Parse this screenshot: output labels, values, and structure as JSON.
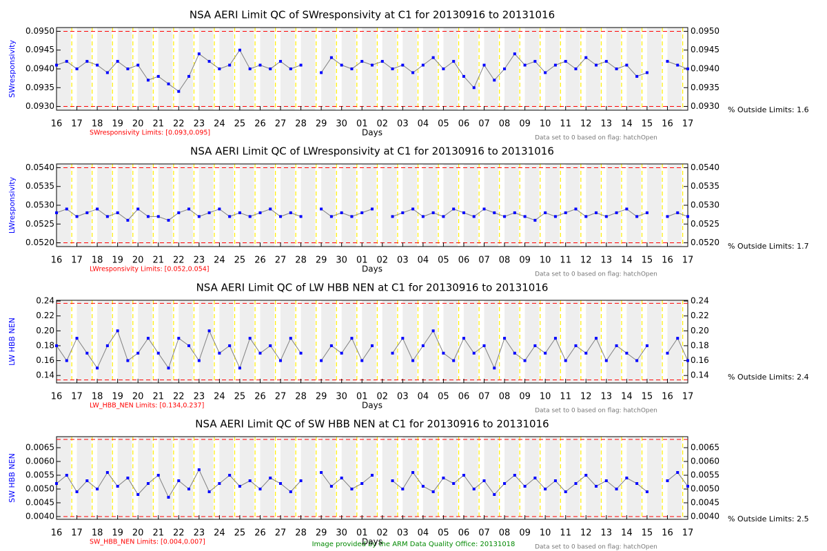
{
  "chart_data": [
    {
      "type": "line",
      "title": "NSA AERI Limit QC of SWresponsivity at C1 for 20130916 to 20131016",
      "ylabel": "SWresponsivity",
      "xlabel": "Days",
      "limits_label": "SWresponsivity Limits: [0.093,0.095]",
      "note": "Data set to 0 based on flag: hatchOpen",
      "outside_label": "% Outside Limits: 1.6",
      "color": "#0000ff",
      "line_color": "#808080",
      "limit_color": "#ff0000",
      "limit_lines": [
        0.095,
        0.093
      ],
      "ylim": [
        0.0929,
        0.0951
      ],
      "yticks": [
        {
          "value": 0.093,
          "label": "0.0930"
        },
        0.0935,
        {
          "value": 0.094,
          "label": "0.0940"
        },
        0.0945,
        {
          "value": 0.095,
          "label": "0.0950"
        }
      ],
      "xlim": [
        0,
        31
      ],
      "xticks": [
        {
          "value": 0,
          "label": "16"
        },
        {
          "value": 1,
          "label": "17"
        },
        {
          "value": 2,
          "label": "18"
        },
        {
          "value": 3,
          "label": "19"
        },
        {
          "value": 4,
          "label": "20"
        },
        {
          "value": 5,
          "label": "21"
        },
        {
          "value": 6,
          "label": "22"
        },
        {
          "value": 7,
          "label": "23"
        },
        {
          "value": 8,
          "label": "24"
        },
        {
          "value": 9,
          "label": "25"
        },
        {
          "value": 10,
          "label": "26"
        },
        {
          "value": 11,
          "label": "27"
        },
        {
          "value": 12,
          "label": "28"
        },
        {
          "value": 13,
          "label": "29"
        },
        {
          "value": 14,
          "label": "30"
        },
        {
          "value": 15,
          "label": "01"
        },
        {
          "value": 16,
          "label": "02"
        },
        {
          "value": 17,
          "label": "03"
        },
        {
          "value": 18,
          "label": "04"
        },
        {
          "value": 19,
          "label": "05"
        },
        {
          "value": 20,
          "label": "06"
        },
        {
          "value": 21,
          "label": "07"
        },
        {
          "value": 22,
          "label": "08"
        },
        {
          "value": 23,
          "label": "09"
        },
        {
          "value": 24,
          "label": "10"
        },
        {
          "value": 25,
          "label": "11"
        },
        {
          "value": 26,
          "label": "12"
        },
        {
          "value": 27,
          "label": "13"
        },
        {
          "value": 28,
          "label": "14"
        },
        {
          "value": 29,
          "label": "15"
        },
        {
          "value": 30,
          "label": "16"
        },
        {
          "value": 31,
          "label": "17"
        }
      ],
      "x": [
        0,
        0.5,
        1,
        1.5,
        2,
        2.5,
        3,
        3.5,
        4,
        4.5,
        5,
        5.5,
        6,
        6.5,
        7,
        7.5,
        8,
        8.5,
        9,
        9.5,
        10,
        10.5,
        11,
        11.5,
        12,
        12.5,
        13,
        13.5,
        14,
        14.5,
        15,
        15.5,
        16,
        16.5,
        17,
        17.5,
        18,
        18.5,
        19,
        19.5,
        20,
        20.5,
        21,
        21.5,
        22,
        22.5,
        23,
        23.5,
        24,
        24.5,
        25,
        25.5,
        26,
        26.5,
        27,
        27.5,
        28,
        28.5,
        29,
        29.5,
        30,
        30.5,
        31
      ],
      "values": [
        0.0941,
        0.0942,
        0.094,
        0.0942,
        0.0941,
        0.0939,
        0.0942,
        0.094,
        0.0941,
        0.0937,
        0.0938,
        0.0936,
        0.0934,
        0.0938,
        0.0944,
        0.0942,
        0.094,
        0.0941,
        0.0945,
        0.094,
        0.0941,
        0.094,
        0.0942,
        0.094,
        0.0941,
        null,
        0.0939,
        0.0943,
        0.0941,
        0.094,
        0.0942,
        0.0941,
        0.0942,
        0.094,
        0.0941,
        0.0939,
        0.0941,
        0.0943,
        0.094,
        0.0942,
        0.0938,
        0.0935,
        0.0941,
        0.0937,
        0.094,
        0.0944,
        0.0941,
        0.0942,
        0.0939,
        0.0941,
        0.0942,
        0.094,
        0.0943,
        0.0941,
        0.0942,
        0.094,
        0.0941,
        0.0938,
        0.0939,
        null,
        0.0942,
        0.0941,
        0.094
      ]
    },
    {
      "type": "line",
      "title": "NSA AERI Limit QC of LWresponsivity at C1 for 20130916 to 20131016",
      "ylabel": "LWresponsivity",
      "xlabel": "Days",
      "limits_label": "LWresponsivity Limits: [0.052,0.054]",
      "note": "Data set to 0 based on flag: hatchOpen",
      "outside_label": "% Outside Limits: 1.7",
      "color": "#0000ff",
      "line_color": "#808080",
      "limit_color": "#ff0000",
      "limit_lines": [
        0.054,
        0.052
      ],
      "ylim": [
        0.0519,
        0.0541
      ],
      "yticks": [
        {
          "value": 0.052,
          "label": "0.0520"
        },
        0.0525,
        {
          "value": 0.053,
          "label": "0.0530"
        },
        0.0535,
        {
          "value": 0.054,
          "label": "0.0540"
        }
      ],
      "xlim": [
        0,
        31
      ],
      "xticks": [
        {
          "value": 0,
          "label": "16"
        },
        {
          "value": 1,
          "label": "17"
        },
        {
          "value": 2,
          "label": "18"
        },
        {
          "value": 3,
          "label": "19"
        },
        {
          "value": 4,
          "label": "20"
        },
        {
          "value": 5,
          "label": "21"
        },
        {
          "value": 6,
          "label": "22"
        },
        {
          "value": 7,
          "label": "23"
        },
        {
          "value": 8,
          "label": "24"
        },
        {
          "value": 9,
          "label": "25"
        },
        {
          "value": 10,
          "label": "26"
        },
        {
          "value": 11,
          "label": "27"
        },
        {
          "value": 12,
          "label": "28"
        },
        {
          "value": 13,
          "label": "29"
        },
        {
          "value": 14,
          "label": "30"
        },
        {
          "value": 15,
          "label": "01"
        },
        {
          "value": 16,
          "label": "02"
        },
        {
          "value": 17,
          "label": "03"
        },
        {
          "value": 18,
          "label": "04"
        },
        {
          "value": 19,
          "label": "05"
        },
        {
          "value": 20,
          "label": "06"
        },
        {
          "value": 21,
          "label": "07"
        },
        {
          "value": 22,
          "label": "08"
        },
        {
          "value": 23,
          "label": "09"
        },
        {
          "value": 24,
          "label": "10"
        },
        {
          "value": 25,
          "label": "11"
        },
        {
          "value": 26,
          "label": "12"
        },
        {
          "value": 27,
          "label": "13"
        },
        {
          "value": 28,
          "label": "14"
        },
        {
          "value": 29,
          "label": "15"
        },
        {
          "value": 30,
          "label": "16"
        },
        {
          "value": 31,
          "label": "17"
        }
      ],
      "x": [
        0,
        0.5,
        1,
        1.5,
        2,
        2.5,
        3,
        3.5,
        4,
        4.5,
        5,
        5.5,
        6,
        6.5,
        7,
        7.5,
        8,
        8.5,
        9,
        9.5,
        10,
        10.5,
        11,
        11.5,
        12,
        12.5,
        13,
        13.5,
        14,
        14.5,
        15,
        15.5,
        16,
        16.5,
        17,
        17.5,
        18,
        18.5,
        19,
        19.5,
        20,
        20.5,
        21,
        21.5,
        22,
        22.5,
        23,
        23.5,
        24,
        24.5,
        25,
        25.5,
        26,
        26.5,
        27,
        27.5,
        28,
        28.5,
        29,
        29.5,
        30,
        30.5,
        31
      ],
      "values": [
        0.0528,
        0.0529,
        0.0527,
        0.0528,
        0.0529,
        0.0527,
        0.0528,
        0.0526,
        0.0529,
        0.0527,
        0.0527,
        0.0526,
        0.0528,
        0.0529,
        0.0527,
        0.0528,
        0.0529,
        0.0527,
        0.0528,
        0.0527,
        0.0528,
        0.0529,
        0.0527,
        0.0528,
        0.0527,
        null,
        0.0529,
        0.0527,
        0.0528,
        0.0527,
        0.0528,
        0.0529,
        null,
        0.0527,
        0.0528,
        0.0529,
        0.0527,
        0.0528,
        0.0527,
        0.0529,
        0.0528,
        0.0527,
        0.0529,
        0.0528,
        0.0527,
        0.0528,
        0.0527,
        0.0526,
        0.0528,
        0.0527,
        0.0528,
        0.0529,
        0.0527,
        0.0528,
        0.0527,
        0.0528,
        0.0529,
        0.0527,
        0.0528,
        null,
        0.0527,
        0.0528,
        0.0527
      ]
    },
    {
      "type": "line",
      "title": "NSA AERI Limit QC of LW HBB NEN at C1 for 20130916 to 20131016",
      "ylabel": "LW HBB NEN",
      "xlabel": "Days",
      "limits_label": "LW_HBB_NEN Limits: [0.134,0.237]",
      "note": "Data set to 0 based on flag: hatchOpen",
      "outside_label": "% Outside Limits: 2.4",
      "color": "#0000ff",
      "line_color": "#808080",
      "limit_color": "#ff0000",
      "limit_lines": [
        0.237,
        0.134
      ],
      "ylim": [
        0.13,
        0.241
      ],
      "yticks": [
        0.14,
        0.16,
        0.18,
        {
          "value": 0.2,
          "label": "0.20"
        },
        0.22,
        0.24
      ],
      "xlim": [
        0,
        31
      ],
      "xticks": [
        {
          "value": 0,
          "label": "16"
        },
        {
          "value": 1,
          "label": "17"
        },
        {
          "value": 2,
          "label": "18"
        },
        {
          "value": 3,
          "label": "19"
        },
        {
          "value": 4,
          "label": "20"
        },
        {
          "value": 5,
          "label": "21"
        },
        {
          "value": 6,
          "label": "22"
        },
        {
          "value": 7,
          "label": "23"
        },
        {
          "value": 8,
          "label": "24"
        },
        {
          "value": 9,
          "label": "25"
        },
        {
          "value": 10,
          "label": "26"
        },
        {
          "value": 11,
          "label": "27"
        },
        {
          "value": 12,
          "label": "28"
        },
        {
          "value": 13,
          "label": "29"
        },
        {
          "value": 14,
          "label": "30"
        },
        {
          "value": 15,
          "label": "01"
        },
        {
          "value": 16,
          "label": "02"
        },
        {
          "value": 17,
          "label": "03"
        },
        {
          "value": 18,
          "label": "04"
        },
        {
          "value": 19,
          "label": "05"
        },
        {
          "value": 20,
          "label": "06"
        },
        {
          "value": 21,
          "label": "07"
        },
        {
          "value": 22,
          "label": "08"
        },
        {
          "value": 23,
          "label": "09"
        },
        {
          "value": 24,
          "label": "10"
        },
        {
          "value": 25,
          "label": "11"
        },
        {
          "value": 26,
          "label": "12"
        },
        {
          "value": 27,
          "label": "13"
        },
        {
          "value": 28,
          "label": "14"
        },
        {
          "value": 29,
          "label": "15"
        },
        {
          "value": 30,
          "label": "16"
        },
        {
          "value": 31,
          "label": "17"
        }
      ],
      "x": [
        0,
        0.5,
        1,
        1.5,
        2,
        2.5,
        3,
        3.5,
        4,
        4.5,
        5,
        5.5,
        6,
        6.5,
        7,
        7.5,
        8,
        8.5,
        9,
        9.5,
        10,
        10.5,
        11,
        11.5,
        12,
        12.5,
        13,
        13.5,
        14,
        14.5,
        15,
        15.5,
        16,
        16.5,
        17,
        17.5,
        18,
        18.5,
        19,
        19.5,
        20,
        20.5,
        21,
        21.5,
        22,
        22.5,
        23,
        23.5,
        24,
        24.5,
        25,
        25.5,
        26,
        26.5,
        27,
        27.5,
        28,
        28.5,
        29,
        29.5,
        30,
        30.5,
        31
      ],
      "values": [
        0.18,
        0.16,
        0.19,
        0.17,
        0.15,
        0.18,
        0.2,
        0.16,
        0.17,
        0.19,
        0.17,
        0.15,
        0.19,
        0.18,
        0.16,
        0.2,
        0.17,
        0.18,
        0.15,
        0.19,
        0.17,
        0.18,
        0.16,
        0.19,
        0.17,
        null,
        0.16,
        0.18,
        0.17,
        0.19,
        0.16,
        0.18,
        null,
        0.17,
        0.19,
        0.16,
        0.18,
        0.2,
        0.17,
        0.16,
        0.19,
        0.17,
        0.18,
        0.15,
        0.19,
        0.17,
        0.16,
        0.18,
        0.17,
        0.19,
        0.16,
        0.18,
        0.17,
        0.19,
        0.16,
        0.18,
        0.17,
        0.16,
        0.18,
        null,
        0.17,
        0.19,
        0.16
      ]
    },
    {
      "type": "line",
      "title": "NSA AERI Limit QC of SW HBB NEN at C1 for 20130916 to 20131016",
      "ylabel": "SW HBB NEN",
      "xlabel": "Days",
      "limits_label": "SW_HBB_NEN Limits: [0.004,0.007]",
      "note": "Data set to 0 based on flag: hatchOpen",
      "outside_label": "% Outside Limits: 2.5",
      "color": "#0000ff",
      "line_color": "#808080",
      "limit_color": "#ff0000",
      "limit_lines": [
        0.0068,
        0.004
      ],
      "ylim": [
        0.0039,
        0.0069
      ],
      "yticks": [
        {
          "value": 0.004,
          "label": "0.0040"
        },
        0.0045,
        {
          "value": 0.005,
          "label": "0.0050"
        },
        0.0055,
        {
          "value": 0.006,
          "label": "0.0060"
        },
        0.0065
      ],
      "xlim": [
        0,
        31
      ],
      "xticks": [
        {
          "value": 0,
          "label": "16"
        },
        {
          "value": 1,
          "label": "17"
        },
        {
          "value": 2,
          "label": "18"
        },
        {
          "value": 3,
          "label": "19"
        },
        {
          "value": 4,
          "label": "20"
        },
        {
          "value": 5,
          "label": "21"
        },
        {
          "value": 6,
          "label": "22"
        },
        {
          "value": 7,
          "label": "23"
        },
        {
          "value": 8,
          "label": "24"
        },
        {
          "value": 9,
          "label": "25"
        },
        {
          "value": 10,
          "label": "26"
        },
        {
          "value": 11,
          "label": "27"
        },
        {
          "value": 12,
          "label": "28"
        },
        {
          "value": 13,
          "label": "29"
        },
        {
          "value": 14,
          "label": "30"
        },
        {
          "value": 15,
          "label": "01"
        },
        {
          "value": 16,
          "label": "02"
        },
        {
          "value": 17,
          "label": "03"
        },
        {
          "value": 18,
          "label": "04"
        },
        {
          "value": 19,
          "label": "05"
        },
        {
          "value": 20,
          "label": "06"
        },
        {
          "value": 21,
          "label": "07"
        },
        {
          "value": 22,
          "label": "08"
        },
        {
          "value": 23,
          "label": "09"
        },
        {
          "value": 24,
          "label": "10"
        },
        {
          "value": 25,
          "label": "11"
        },
        {
          "value": 26,
          "label": "12"
        },
        {
          "value": 27,
          "label": "13"
        },
        {
          "value": 28,
          "label": "14"
        },
        {
          "value": 29,
          "label": "15"
        },
        {
          "value": 30,
          "label": "16"
        },
        {
          "value": 31,
          "label": "17"
        }
      ],
      "x": [
        0,
        0.5,
        1,
        1.5,
        2,
        2.5,
        3,
        3.5,
        4,
        4.5,
        5,
        5.5,
        6,
        6.5,
        7,
        7.5,
        8,
        8.5,
        9,
        9.5,
        10,
        10.5,
        11,
        11.5,
        12,
        12.5,
        13,
        13.5,
        14,
        14.5,
        15,
        15.5,
        16,
        16.5,
        17,
        17.5,
        18,
        18.5,
        19,
        19.5,
        20,
        20.5,
        21,
        21.5,
        22,
        22.5,
        23,
        23.5,
        24,
        24.5,
        25,
        25.5,
        26,
        26.5,
        27,
        27.5,
        28,
        28.5,
        29,
        29.5,
        30,
        30.5,
        31
      ],
      "values": [
        0.0052,
        0.0055,
        0.0049,
        0.0053,
        0.005,
        0.0056,
        0.0051,
        0.0054,
        0.0048,
        0.0052,
        0.0055,
        0.0047,
        0.0053,
        0.005,
        0.0057,
        0.0049,
        0.0052,
        0.0055,
        0.0051,
        0.0053,
        0.005,
        0.0054,
        0.0052,
        0.0049,
        0.0053,
        null,
        0.0056,
        0.0051,
        0.0054,
        0.005,
        0.0052,
        0.0055,
        null,
        0.0053,
        0.005,
        0.0056,
        0.0051,
        0.0049,
        0.0054,
        0.0052,
        0.0055,
        0.005,
        0.0053,
        0.0048,
        0.0052,
        0.0055,
        0.0051,
        0.0054,
        0.005,
        0.0053,
        0.0049,
        0.0052,
        0.0055,
        0.0051,
        0.0053,
        0.005,
        0.0054,
        0.0052,
        0.0049,
        null,
        0.0053,
        0.0056,
        0.0051
      ]
    }
  ],
  "footer": "Image provided by the ARM Data Quality Office: 20131018"
}
